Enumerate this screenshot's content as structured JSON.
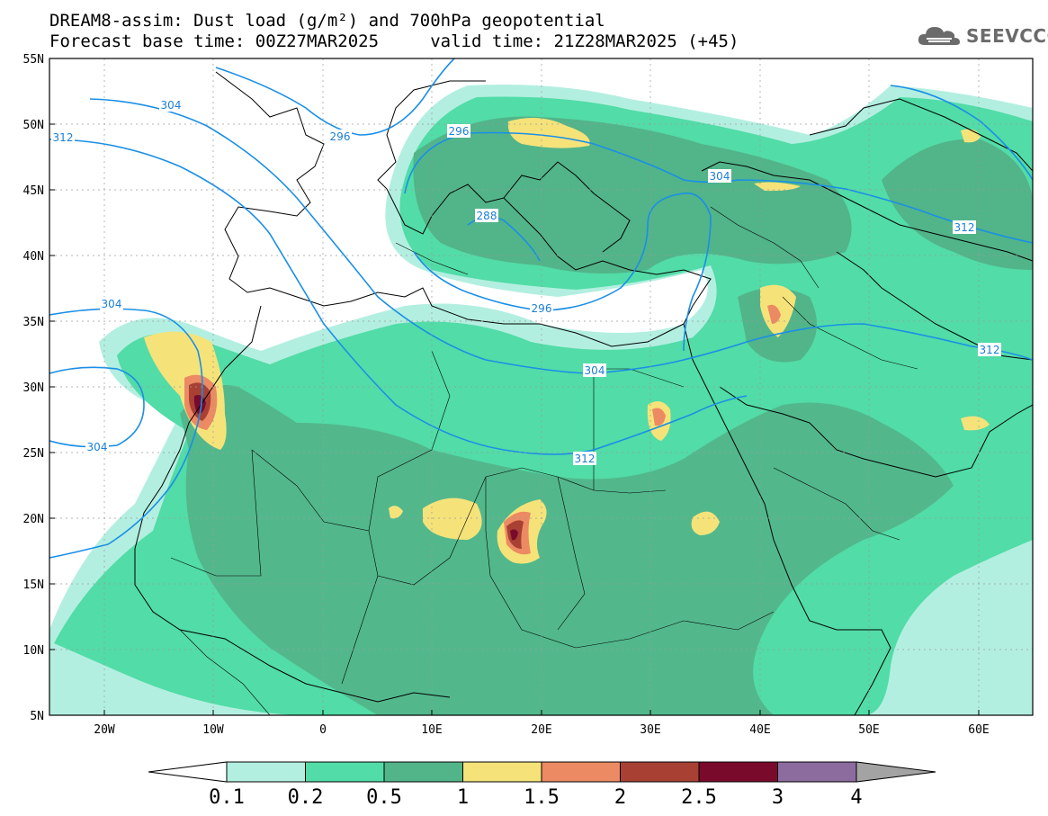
{
  "title_line1": "DREAM8-assim: Dust load (g/m²) and 700hPa geopotential",
  "title_line2": "Forecast base time: 00Z27MAR2025     valid time: 21Z28MAR2025 (+45)",
  "logo_text": "SEEVCCC",
  "lat_labels": [
    "55N",
    "50N",
    "45N",
    "40N",
    "35N",
    "30N",
    "25N",
    "20N",
    "15N",
    "10N",
    "5N"
  ],
  "lon_labels": [
    "20W",
    "10W",
    "0",
    "10E",
    "20E",
    "30E",
    "40E",
    "50E",
    "60E"
  ],
  "contour_labels": [
    "304",
    "312",
    "296",
    "296",
    "288",
    "296",
    "304",
    "304",
    "312",
    "304",
    "312",
    "304",
    "312"
  ],
  "colorbar": {
    "colors": [
      "#b3efe0",
      "#52dca7",
      "#52b489",
      "#f5e37a",
      "#ec8a63",
      "#a84133",
      "#7a0a2c",
      "#8c6b9f",
      "#a3a3a3"
    ],
    "tick_labels": [
      "0.1",
      "0.2",
      "0.5",
      "1",
      "1.5",
      "2",
      "2.5",
      "3",
      "4"
    ]
  },
  "map_colors": {
    "ocean": "#ffffff",
    "coast": "#000000",
    "contour": "#1a8fe6",
    "grid": "#9a9a9a"
  }
}
